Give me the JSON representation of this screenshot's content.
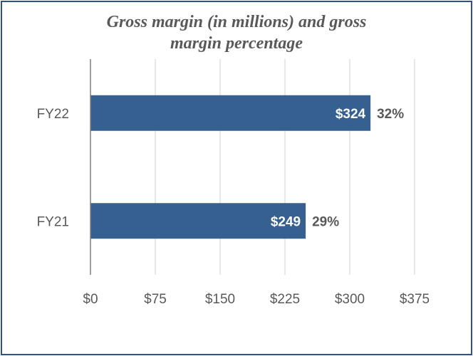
{
  "chart_data": {
    "type": "bar",
    "orientation": "horizontal",
    "title_lines": [
      "Gross margin (in millions) and gross",
      "margin percentage"
    ],
    "categories": [
      "FY22",
      "FY21"
    ],
    "values": [
      324,
      249
    ],
    "value_labels": [
      "$324",
      "$249"
    ],
    "percent_labels": [
      "32%",
      "29%"
    ],
    "xlim": [
      0,
      375
    ],
    "xticks": [
      0,
      75,
      150,
      225,
      300,
      375
    ],
    "xtick_labels": [
      "$0",
      "$75",
      "$150",
      "$225",
      "$300",
      "$375"
    ],
    "xlabel": "",
    "ylabel": "",
    "grid": true,
    "bar_color": "#35608f",
    "grid_color": "#d9d9d9",
    "axis_color": "#7f7f7f"
  }
}
